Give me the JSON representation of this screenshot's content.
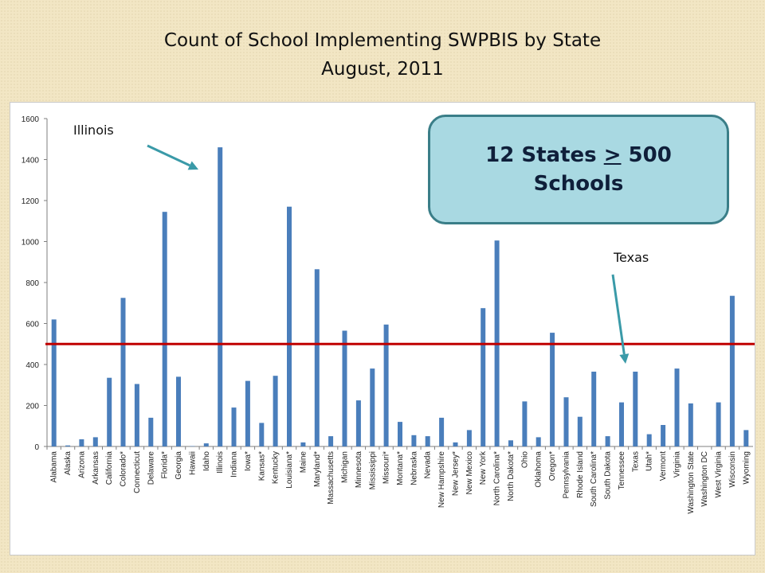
{
  "title": {
    "line1": "Count of School Implementing SWPBIS by State",
    "line2": "August, 2011"
  },
  "callout": {
    "line1_pre": "12 States ",
    "line1_symbol": ">",
    "line1_post": " 500",
    "line2": "Schools"
  },
  "annotations": {
    "illinois": "Illinois",
    "texas": "Texas"
  },
  "colors": {
    "bar": "#4a7ebb",
    "threshold_line": "#c00000",
    "arrow": "#3a9aa8",
    "callout_fill": "#a9d9e2",
    "callout_border": "#3a7e88"
  },
  "chart_data": {
    "type": "bar",
    "title": "Count of School Implementing SWPBIS by State",
    "subtitle": "August, 2011",
    "ylim": [
      0,
      1600
    ],
    "yticks": [
      0,
      200,
      400,
      600,
      800,
      1000,
      1200,
      1400,
      1600
    ],
    "grid": false,
    "reference_line": 500,
    "categories": [
      "Alabama",
      "Alaska",
      "Arizona",
      "Arkansas",
      "California",
      "Colorado*",
      "Connecticut",
      "Delaware",
      "Florida*",
      "Georgia",
      "Hawaii",
      "Idaho",
      "Illinois",
      "Indiana",
      "Iowa*",
      "Kansas*",
      "Kentucky",
      "Louisiana*",
      "Maine",
      "Maryland*",
      "Massachusetts",
      "Michigan",
      "Minnesota",
      "Mississippi",
      "Missouri*",
      "Montana*",
      "Nebraska",
      "Nevada",
      "New Hampshire",
      "New Jersey*",
      "New Mexico",
      "New York",
      "North Carolina*",
      "North Dakota*",
      "Ohio",
      "Oklahoma",
      "Oregon*",
      "Pennsylvania",
      "Rhode Island",
      "South Carolina*",
      "South Dakota",
      "Tennessee",
      "Texas",
      "Utah*",
      "Vermont",
      "Virginia",
      "Washington State",
      "Washington DC",
      "West Virginia",
      "Wisconsin",
      "Wyoming"
    ],
    "values": [
      620,
      5,
      35,
      45,
      335,
      725,
      305,
      140,
      1145,
      340,
      2,
      15,
      1460,
      190,
      320,
      115,
      345,
      1170,
      20,
      865,
      50,
      565,
      225,
      380,
      595,
      120,
      55,
      50,
      140,
      20,
      80,
      675,
      1005,
      30,
      220,
      45,
      555,
      240,
      145,
      365,
      50,
      215,
      365,
      60,
      105,
      380,
      210,
      0,
      215,
      735,
      80
    ]
  }
}
